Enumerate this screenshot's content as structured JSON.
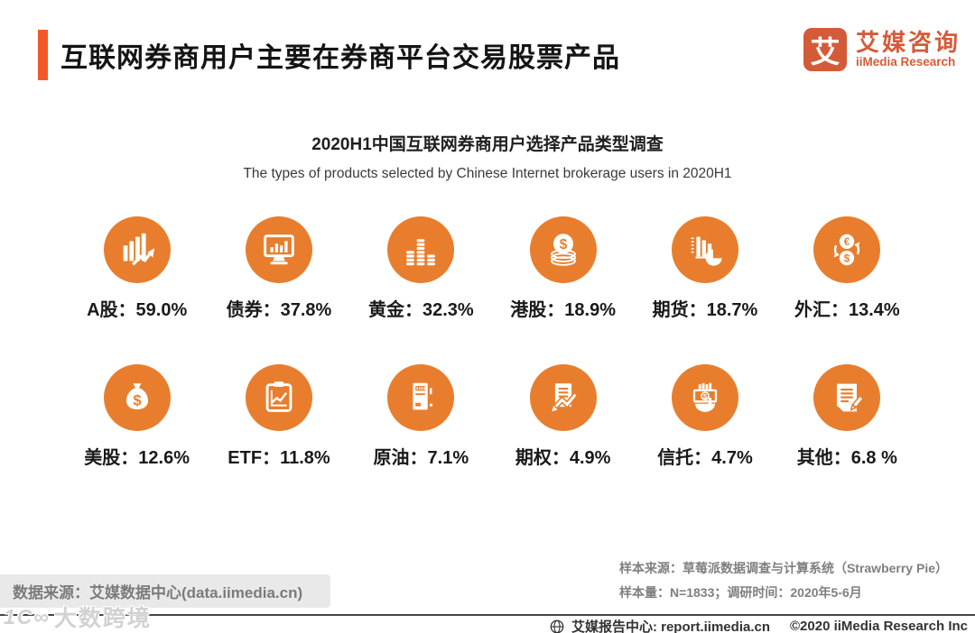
{
  "header": {
    "title": "互联网券商用户主要在券商平台交易股票产品"
  },
  "logo": {
    "glyph": "艾",
    "name_cn": "艾媒咨询",
    "name_en": "iiMedia Research"
  },
  "chart": {
    "title": "2020H1中国互联网券商用户选择产品类型调查",
    "subtitle": "The types of products selected by Chinese Internet brokerage users in 2020H1"
  },
  "chart_data": {
    "type": "pictogram",
    "title": "2020H1中国互联网券商用户选择产品类型调查",
    "subtitle": "The types of products selected by Chinese Internet brokerage users in 2020H1",
    "unit": "%",
    "layout": "icon grid, 2 rows x 6 columns",
    "categories": [
      "A股",
      "债券",
      "黄金",
      "港股",
      "期货",
      "外汇",
      "美股",
      "ETF",
      "原油",
      "期权",
      "信托",
      "其他"
    ],
    "values": [
      59.0,
      37.8,
      32.3,
      18.9,
      18.7,
      13.4,
      12.6,
      11.8,
      7.1,
      4.9,
      4.7,
      6.8
    ]
  },
  "items": [
    {
      "label": "A股",
      "value": "59.0%",
      "display": "A股：59.0%",
      "icon": "stock-trend"
    },
    {
      "label": "债券",
      "value": "37.8%",
      "display": "债券：37.8%",
      "icon": "monitor-chart"
    },
    {
      "label": "黄金",
      "value": "32.3%",
      "display": "黄金：32.3%",
      "icon": "gold-bars"
    },
    {
      "label": "港股",
      "value": "18.9%",
      "display": "港股：18.9%",
      "icon": "coin-stack"
    },
    {
      "label": "期货",
      "value": "18.7%",
      "display": "期货：18.7%",
      "icon": "chart-pie"
    },
    {
      "label": "外汇",
      "value": "13.4%",
      "display": "外汇：13.4%",
      "icon": "currency-exchange"
    },
    {
      "label": "美股",
      "value": "12.6%",
      "display": "美股：12.6%",
      "icon": "money-bag"
    },
    {
      "label": "ETF",
      "value": "11.8%",
      "display": "ETF：11.8%",
      "icon": "clipboard-chart"
    },
    {
      "label": "原油",
      "value": "7.1%",
      "display": "原油：7.1%",
      "icon": "oil-machine"
    },
    {
      "label": "期权",
      "value": "4.9%",
      "display": "期权：4.9%",
      "icon": "document-trend"
    },
    {
      "label": "信托",
      "value": "4.7%",
      "display": "信托：4.7%",
      "icon": "hand-money"
    },
    {
      "label": "其他",
      "value": "6.8 %",
      "display": "其他：6.8 %",
      "icon": "note-pencil"
    }
  ],
  "source": {
    "data_source": "数据来源：艾媒数据中心(data.iimedia.cn)",
    "sample_source": "样本来源：草莓派数据调查与计算系统（Strawberry Pie）",
    "sample_info": "样本量：N=1833；调研时间：2020年5-6月"
  },
  "footer": {
    "report_center": "艾媒报告中心: report.iimedia.cn",
    "copyright": "©2020  iiMedia Research Inc"
  },
  "watermark": {
    "logo": "1C∞",
    "text": "大数跨境"
  },
  "colors": {
    "accent": "#F05A28",
    "icon_circle": "#E87E2D",
    "logo": "#D45B38",
    "gray_text": "#7f7f7f"
  }
}
